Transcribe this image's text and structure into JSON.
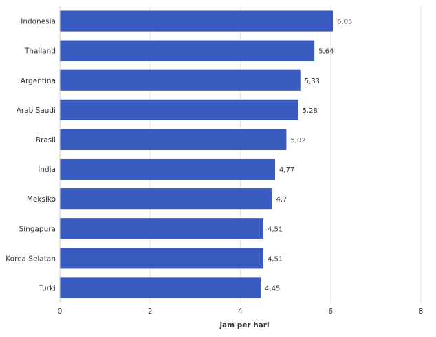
{
  "chart_data": {
    "type": "bar",
    "orientation": "horizontal",
    "title": "",
    "xlabel": "jam per hari",
    "ylabel": "",
    "categories": [
      "Indonesia",
      "Thailand",
      "Argentina",
      "Arab Saudi",
      "Brasil",
      "India",
      "Meksiko",
      "Singapura",
      "Korea Selatan",
      "Turki"
    ],
    "values": [
      6.05,
      5.64,
      5.33,
      5.28,
      5.02,
      4.77,
      4.7,
      4.51,
      4.51,
      4.45
    ],
    "value_labels": [
      "6,05",
      "5,64",
      "5,33",
      "5,28",
      "5,02",
      "4,77",
      "4,7",
      "4,51",
      "4,51",
      "4,45"
    ],
    "xlim": [
      0,
      8
    ],
    "xticks": [
      0,
      2,
      4,
      6,
      8
    ],
    "xtick_labels": [
      "0",
      "2",
      "4",
      "6",
      "8"
    ],
    "grid": true,
    "legend": "none",
    "colors": {
      "bar": "#3a5bbf",
      "grid": "#e6e6e6",
      "text": "#333333"
    }
  }
}
